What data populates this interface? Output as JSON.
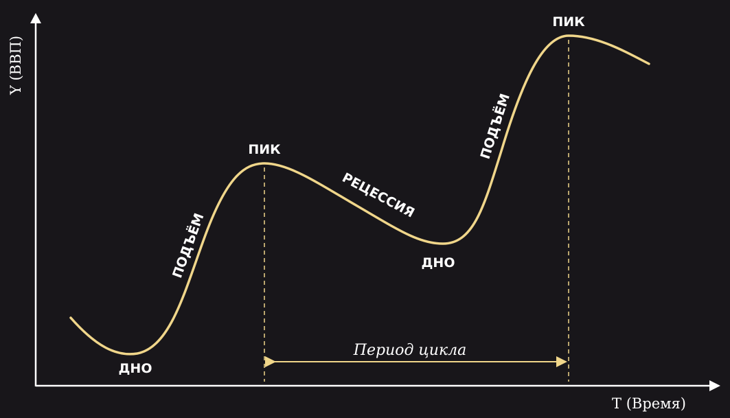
{
  "colors": {
    "background": "#18161a",
    "curve": "#f0d68a",
    "axis": "#ffffff",
    "text": "#ffffff"
  },
  "axes": {
    "y_label": "Y (ВВП)",
    "x_label": "T (Время)"
  },
  "labels": {
    "trough_1": "ДНО",
    "rise_1": "ПОДЪЁМ",
    "peak_1": "ПИК",
    "recession": "РЕЦЕССИЯ",
    "trough_2": "ДНО",
    "rise_2": "ПОДЪЁМ",
    "peak_2": "ПИК"
  },
  "period_label": "Период цикла"
}
